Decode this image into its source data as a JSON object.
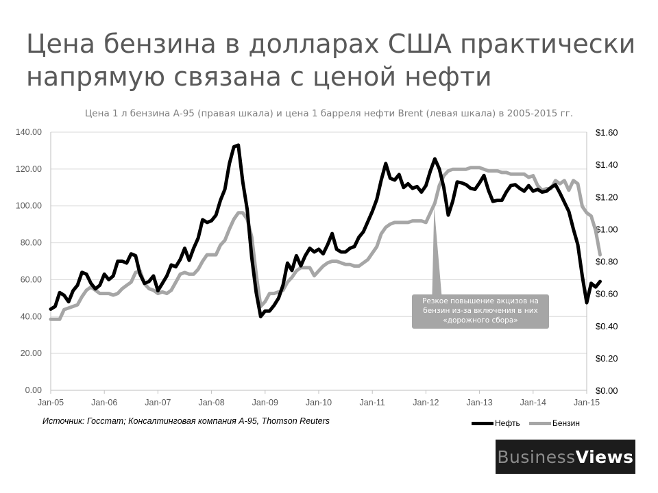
{
  "title": "Цена бензина в долларах США практически напрямую связана с ценой нефти",
  "subtitle": "Цена 1 л бензина А-95 (правая шкала) и цена 1 барреля нефти Brent (левая шкала) в 2005-2015 гг.",
  "source": "Источник: Госстат; Консалтинговая компания А-95, Thomson Reuters",
  "brand": {
    "part1": "Business",
    "part2": "Views"
  },
  "colors": {
    "oil": "#000000",
    "gasoline": "#a6a6a6",
    "axis_text": "#595959",
    "grid": "#d9d9d9",
    "callout": "#a6a6a6"
  },
  "chart_data": {
    "type": "line",
    "x_tick_labels": [
      "Jan-05",
      "Jan-06",
      "Jan-07",
      "Jan-08",
      "Jan-09",
      "Jan-10",
      "Jan-11",
      "Jan-12",
      "Jan-13",
      "Jan-14",
      "Jan-15"
    ],
    "y_left": {
      "ticks": [
        "0.00",
        "20.00",
        "40.00",
        "60.00",
        "80.00",
        "100.00",
        "120.00",
        "140.00"
      ],
      "ylim": [
        0,
        140
      ]
    },
    "y_right": {
      "ticks": [
        "$0.00",
        "$0.20",
        "$0.40",
        "$0.60",
        "$0.80",
        "$1.00",
        "$1.20",
        "$1.40",
        "$1.60"
      ],
      "ylim": [
        0,
        1.6
      ]
    },
    "grid": "horizontal",
    "legend_position": "bottom-right",
    "series": [
      {
        "name": "Нефть",
        "axis": "left",
        "color": "#000000",
        "points": [
          [
            "2005-01",
            44
          ],
          [
            "2005-02",
            45.5
          ],
          [
            "2005-03",
            53
          ],
          [
            "2005-04",
            51.5
          ],
          [
            "2005-05",
            48
          ],
          [
            "2005-06",
            54
          ],
          [
            "2005-07",
            57
          ],
          [
            "2005-08",
            64
          ],
          [
            "2005-09",
            63
          ],
          [
            "2005-10",
            58
          ],
          [
            "2005-11",
            55
          ],
          [
            "2005-12",
            57
          ],
          [
            "2006-01",
            63
          ],
          [
            "2006-02",
            60
          ],
          [
            "2006-03",
            62
          ],
          [
            "2006-04",
            70
          ],
          [
            "2006-05",
            70
          ],
          [
            "2006-06",
            69
          ],
          [
            "2006-07",
            74
          ],
          [
            "2006-08",
            73
          ],
          [
            "2006-09",
            63
          ],
          [
            "2006-10",
            58
          ],
          [
            "2006-11",
            59
          ],
          [
            "2006-12",
            62
          ],
          [
            "2007-01",
            54
          ],
          [
            "2007-02",
            58
          ],
          [
            "2007-03",
            62
          ],
          [
            "2007-04",
            68
          ],
          [
            "2007-05",
            67
          ],
          [
            "2007-06",
            71
          ],
          [
            "2007-07",
            77
          ],
          [
            "2007-08",
            70.5
          ],
          [
            "2007-09",
            77
          ],
          [
            "2007-10",
            82.5
          ],
          [
            "2007-11",
            92.5
          ],
          [
            "2007-12",
            91
          ],
          [
            "2008-01",
            92
          ],
          [
            "2008-02",
            95
          ],
          [
            "2008-03",
            103
          ],
          [
            "2008-04",
            109
          ],
          [
            "2008-05",
            123
          ],
          [
            "2008-06",
            132
          ],
          [
            "2008-07",
            133
          ],
          [
            "2008-08",
            113
          ],
          [
            "2008-09",
            98
          ],
          [
            "2008-10",
            72
          ],
          [
            "2008-11",
            53
          ],
          [
            "2008-12",
            40
          ],
          [
            "2009-01",
            43
          ],
          [
            "2009-02",
            43
          ],
          [
            "2009-03",
            46
          ],
          [
            "2009-04",
            50
          ],
          [
            "2009-05",
            57
          ],
          [
            "2009-06",
            69
          ],
          [
            "2009-07",
            65
          ],
          [
            "2009-08",
            73
          ],
          [
            "2009-09",
            67.5
          ],
          [
            "2009-10",
            73
          ],
          [
            "2009-11",
            77
          ],
          [
            "2009-12",
            75
          ],
          [
            "2010-01",
            76.5
          ],
          [
            "2010-02",
            74
          ],
          [
            "2010-03",
            79
          ],
          [
            "2010-04",
            85
          ],
          [
            "2010-05",
            76.5
          ],
          [
            "2010-06",
            75
          ],
          [
            "2010-07",
            75
          ],
          [
            "2010-08",
            77
          ],
          [
            "2010-09",
            78
          ],
          [
            "2010-10",
            83
          ],
          [
            "2010-11",
            86
          ],
          [
            "2010-12",
            91.5
          ],
          [
            "2011-01",
            97
          ],
          [
            "2011-02",
            103.5
          ],
          [
            "2011-03",
            114
          ],
          [
            "2011-04",
            123
          ],
          [
            "2011-05",
            115
          ],
          [
            "2011-06",
            114
          ],
          [
            "2011-07",
            117
          ],
          [
            "2011-08",
            110
          ],
          [
            "2011-09",
            112
          ],
          [
            "2011-10",
            109.5
          ],
          [
            "2011-11",
            110.5
          ],
          [
            "2011-12",
            107.5
          ],
          [
            "2012-01",
            111
          ],
          [
            "2012-02",
            119
          ],
          [
            "2012-03",
            125.5
          ],
          [
            "2012-04",
            120
          ],
          [
            "2012-05",
            110
          ],
          [
            "2012-06",
            95
          ],
          [
            "2012-07",
            102.5
          ],
          [
            "2012-08",
            113
          ],
          [
            "2012-09",
            112.5
          ],
          [
            "2012-10",
            111.5
          ],
          [
            "2012-11",
            109.5
          ],
          [
            "2012-12",
            109
          ],
          [
            "2013-01",
            112.5
          ],
          [
            "2013-02",
            116.5
          ],
          [
            "2013-03",
            108.5
          ],
          [
            "2013-04",
            102.5
          ],
          [
            "2013-05",
            103
          ],
          [
            "2013-06",
            103
          ],
          [
            "2013-07",
            107.5
          ],
          [
            "2013-08",
            111
          ],
          [
            "2013-09",
            111.5
          ],
          [
            "2013-10",
            109.5
          ],
          [
            "2013-11",
            108
          ],
          [
            "2013-12",
            111
          ],
          [
            "2014-01",
            108
          ],
          [
            "2014-02",
            109
          ],
          [
            "2014-03",
            107.5
          ],
          [
            "2014-04",
            108
          ],
          [
            "2014-05",
            110
          ],
          [
            "2014-06",
            111.5
          ],
          [
            "2014-07",
            107
          ],
          [
            "2014-08",
            102
          ],
          [
            "2014-09",
            97
          ],
          [
            "2014-10",
            87.5
          ],
          [
            "2014-11",
            79
          ],
          [
            "2014-12",
            62
          ],
          [
            "2015-01",
            47.5
          ],
          [
            "2015-02",
            58
          ],
          [
            "2015-03",
            56
          ],
          [
            "2015-04",
            59
          ]
        ]
      },
      {
        "name": "Бензин",
        "axis": "right",
        "color": "#a6a6a6",
        "points": [
          [
            "2005-01",
            0.44
          ],
          [
            "2005-02",
            0.44
          ],
          [
            "2005-03",
            0.44
          ],
          [
            "2005-04",
            0.5
          ],
          [
            "2005-05",
            0.51
          ],
          [
            "2005-06",
            0.52
          ],
          [
            "2005-07",
            0.53
          ],
          [
            "2005-08",
            0.58
          ],
          [
            "2005-09",
            0.62
          ],
          [
            "2005-10",
            0.64
          ],
          [
            "2005-11",
            0.62
          ],
          [
            "2005-12",
            0.6
          ],
          [
            "2006-01",
            0.6
          ],
          [
            "2006-02",
            0.6
          ],
          [
            "2006-03",
            0.59
          ],
          [
            "2006-04",
            0.6
          ],
          [
            "2006-05",
            0.63
          ],
          [
            "2006-06",
            0.65
          ],
          [
            "2006-07",
            0.67
          ],
          [
            "2006-08",
            0.73
          ],
          [
            "2006-09",
            0.74
          ],
          [
            "2006-10",
            0.66
          ],
          [
            "2006-11",
            0.63
          ],
          [
            "2006-12",
            0.62
          ],
          [
            "2007-01",
            0.6
          ],
          [
            "2007-02",
            0.61
          ],
          [
            "2007-03",
            0.6
          ],
          [
            "2007-04",
            0.62
          ],
          [
            "2007-05",
            0.67
          ],
          [
            "2007-06",
            0.72
          ],
          [
            "2007-07",
            0.73
          ],
          [
            "2007-08",
            0.72
          ],
          [
            "2007-09",
            0.72
          ],
          [
            "2007-10",
            0.75
          ],
          [
            "2007-11",
            0.8
          ],
          [
            "2007-12",
            0.84
          ],
          [
            "2008-01",
            0.84
          ],
          [
            "2008-02",
            0.84
          ],
          [
            "2008-03",
            0.9
          ],
          [
            "2008-04",
            0.93
          ],
          [
            "2008-05",
            1.0
          ],
          [
            "2008-06",
            1.06
          ],
          [
            "2008-07",
            1.1
          ],
          [
            "2008-08",
            1.1
          ],
          [
            "2008-09",
            1.06
          ],
          [
            "2008-10",
            0.95
          ],
          [
            "2008-11",
            0.72
          ],
          [
            "2008-12",
            0.52
          ],
          [
            "2009-01",
            0.55
          ],
          [
            "2009-02",
            0.6
          ],
          [
            "2009-03",
            0.6
          ],
          [
            "2009-04",
            0.61
          ],
          [
            "2009-05",
            0.62
          ],
          [
            "2009-06",
            0.67
          ],
          [
            "2009-07",
            0.7
          ],
          [
            "2009-08",
            0.74
          ],
          [
            "2009-09",
            0.76
          ],
          [
            "2009-10",
            0.76
          ],
          [
            "2009-11",
            0.76
          ],
          [
            "2009-12",
            0.71
          ],
          [
            "2010-01",
            0.74
          ],
          [
            "2010-02",
            0.77
          ],
          [
            "2010-03",
            0.79
          ],
          [
            "2010-04",
            0.8
          ],
          [
            "2010-05",
            0.8
          ],
          [
            "2010-06",
            0.79
          ],
          [
            "2010-07",
            0.78
          ],
          [
            "2010-08",
            0.78
          ],
          [
            "2010-09",
            0.77
          ],
          [
            "2010-10",
            0.77
          ],
          [
            "2010-11",
            0.79
          ],
          [
            "2010-12",
            0.81
          ],
          [
            "2011-01",
            0.85
          ],
          [
            "2011-02",
            0.89
          ],
          [
            "2011-03",
            0.97
          ],
          [
            "2011-04",
            1.01
          ],
          [
            "2011-05",
            1.03
          ],
          [
            "2011-06",
            1.04
          ],
          [
            "2011-07",
            1.04
          ],
          [
            "2011-08",
            1.04
          ],
          [
            "2011-09",
            1.04
          ],
          [
            "2011-10",
            1.05
          ],
          [
            "2011-11",
            1.05
          ],
          [
            "2011-12",
            1.05
          ],
          [
            "2012-01",
            1.04
          ],
          [
            "2012-02",
            1.1
          ],
          [
            "2012-03",
            1.16
          ],
          [
            "2012-04",
            1.27
          ],
          [
            "2012-05",
            1.33
          ],
          [
            "2012-06",
            1.36
          ],
          [
            "2012-07",
            1.37
          ],
          [
            "2012-08",
            1.37
          ],
          [
            "2012-09",
            1.37
          ],
          [
            "2012-10",
            1.37
          ],
          [
            "2012-11",
            1.38
          ],
          [
            "2012-12",
            1.38
          ],
          [
            "2013-01",
            1.38
          ],
          [
            "2013-02",
            1.37
          ],
          [
            "2013-03",
            1.36
          ],
          [
            "2013-04",
            1.36
          ],
          [
            "2013-05",
            1.36
          ],
          [
            "2013-06",
            1.35
          ],
          [
            "2013-07",
            1.35
          ],
          [
            "2013-08",
            1.34
          ],
          [
            "2013-09",
            1.34
          ],
          [
            "2013-10",
            1.34
          ],
          [
            "2013-11",
            1.34
          ],
          [
            "2013-12",
            1.32
          ],
          [
            "2014-01",
            1.33
          ],
          [
            "2014-02",
            1.27
          ],
          [
            "2014-03",
            1.24
          ],
          [
            "2014-04",
            1.25
          ],
          [
            "2014-05",
            1.25
          ],
          [
            "2014-06",
            1.3
          ],
          [
            "2014-07",
            1.28
          ],
          [
            "2014-08",
            1.3
          ],
          [
            "2014-09",
            1.24
          ],
          [
            "2014-10",
            1.3
          ],
          [
            "2014-11",
            1.28
          ],
          [
            "2014-12",
            1.14
          ],
          [
            "2015-01",
            1.1
          ],
          [
            "2015-02",
            1.08
          ],
          [
            "2015-03",
            0.99
          ],
          [
            "2015-04",
            0.84
          ]
        ]
      }
    ],
    "annotation": {
      "text": "Резкое повышение акцизов на бензин из-за включения в них «дорожного сбора»",
      "target_x": "2012-03",
      "target_y_right": 1.16
    }
  }
}
